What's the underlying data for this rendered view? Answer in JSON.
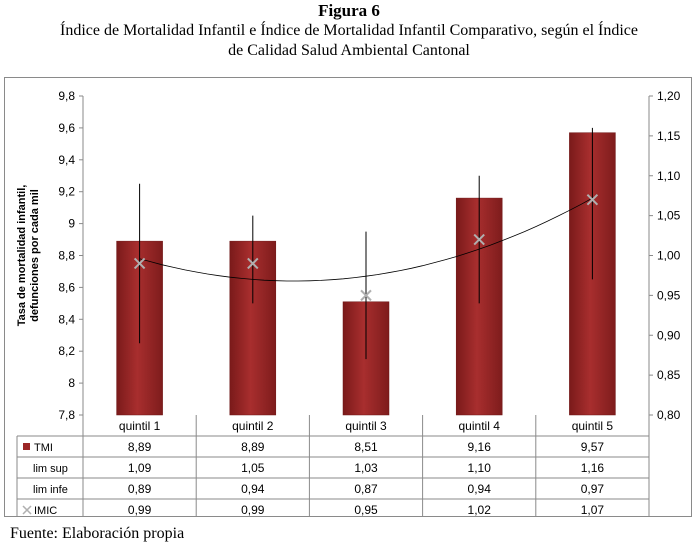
{
  "figure": {
    "label": "Figura 6",
    "title_line1": "Índice de Mortalidad Infantil e Índice de Mortalidad Infantil Comparativo, según el Índice",
    "title_line2": "de Calidad Salud Ambiental Cantonal",
    "source": "Fuente: Elaboración propia"
  },
  "chart_data": {
    "type": "bar",
    "categories": [
      "quintil 1",
      "quintil 2",
      "quintil 3",
      "quintil 4",
      "quintil 5"
    ],
    "series": [
      {
        "name": "TMI",
        "axis": "left",
        "kind": "bar",
        "color": "#9b2626",
        "values": [
          8.89,
          8.89,
          8.51,
          9.16,
          9.57
        ],
        "labels": [
          "8,89",
          "8,89",
          "8,51",
          "9,16",
          "9,57"
        ]
      },
      {
        "name": "lim sup",
        "axis": "right",
        "kind": "error-upper",
        "values": [
          1.09,
          1.05,
          1.03,
          1.1,
          1.16
        ],
        "labels": [
          "1,09",
          "1,05",
          "1,03",
          "1,10",
          "1,16"
        ]
      },
      {
        "name": "lim infe",
        "axis": "right",
        "kind": "error-lower",
        "values": [
          0.89,
          0.94,
          0.87,
          0.94,
          0.97
        ],
        "labels": [
          "0,89",
          "0,94",
          "0,87",
          "0,94",
          "0,97"
        ]
      },
      {
        "name": "IMIC",
        "axis": "right",
        "kind": "marker-x",
        "color": "#b0b0b0",
        "values": [
          0.99,
          0.99,
          0.95,
          1.02,
          1.07
        ],
        "labels": [
          "0,99",
          "0,99",
          "0,95",
          "1,02",
          "1,07"
        ]
      }
    ],
    "ylabel_line1": "Tasa de mortalidad  infantil,",
    "ylabel_line2": "defunciones por cada mil",
    "ylim_left": [
      7.8,
      9.8
    ],
    "yticks_left": [
      "7,8",
      "8",
      "8,2",
      "8,4",
      "8,6",
      "8,8",
      "9",
      "9,2",
      "9,4",
      "9,6",
      "9,8"
    ],
    "ylim_right": [
      0.8,
      1.2
    ],
    "yticks_right": [
      "0,80",
      "0,85",
      "0,90",
      "0,95",
      "1,00",
      "1,05",
      "1,10",
      "1,15",
      "1,20"
    ],
    "trendline": "polynomial",
    "data_table": true,
    "grid": false
  }
}
